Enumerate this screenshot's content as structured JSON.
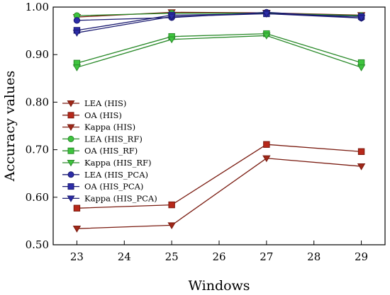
{
  "chart_data": {
    "type": "line",
    "xlabel": "Windows",
    "ylabel": "Accuracy values",
    "xlim": [
      22.5,
      29.5
    ],
    "ylim": [
      0.5,
      1.0
    ],
    "xticks": [
      23,
      24,
      25,
      26,
      27,
      28,
      29
    ],
    "yticks": [
      "0.50",
      "0.60",
      "0.70",
      "0.80",
      "0.90",
      "1.00"
    ],
    "ytick_values": [
      0.5,
      0.6,
      0.7,
      0.8,
      0.9,
      1.0
    ],
    "grid": false,
    "legend_position": "center-left",
    "x": [
      23,
      25,
      27,
      29
    ],
    "series": [
      {
        "name": "LEA (HIS)",
        "values": [
          0.979,
          0.989,
          0.988,
          0.983
        ],
        "marker": "triangle-down",
        "fill": "#a02818",
        "line": "#7a1b10"
      },
      {
        "name": "OA (HIS)",
        "values": [
          0.577,
          0.584,
          0.711,
          0.696
        ],
        "marker": "square",
        "fill": "#b8281a",
        "line": "#7a1b10"
      },
      {
        "name": "Kappa (HIS)",
        "values": [
          0.534,
          0.541,
          0.682,
          0.665
        ],
        "marker": "triangle-down",
        "fill": "#a02818",
        "line": "#7a1b10"
      },
      {
        "name": "LEA (HIS_RF)",
        "values": [
          0.982,
          0.987,
          0.987,
          0.982
        ],
        "marker": "circle",
        "fill": "#3ec43e",
        "line": "#2a8a2a"
      },
      {
        "name": "OA (HIS_RF)",
        "values": [
          0.882,
          0.938,
          0.944,
          0.883
        ],
        "marker": "square",
        "fill": "#3ec43e",
        "line": "#2a8a2a"
      },
      {
        "name": "Kappa (HIS_RF)",
        "values": [
          0.873,
          0.932,
          0.94,
          0.873
        ],
        "marker": "triangle-down",
        "fill": "#3ec43e",
        "line": "#2a8a2a"
      },
      {
        "name": "LEA (HIS_PCA)",
        "values": [
          0.972,
          0.978,
          0.989,
          0.977
        ],
        "marker": "circle",
        "fill": "#2c2ca8",
        "line": "#1a1a70"
      },
      {
        "name": "OA (HIS_PCA)",
        "values": [
          0.951,
          0.983,
          0.986,
          0.98
        ],
        "marker": "square",
        "fill": "#2c2ca8",
        "line": "#1a1a70"
      },
      {
        "name": "Kappa (HIS_PCA)",
        "values": [
          0.946,
          0.98,
          0.986,
          0.977
        ],
        "marker": "triangle-down",
        "fill": "#2c2ca8",
        "line": "#1a1a70"
      }
    ]
  }
}
